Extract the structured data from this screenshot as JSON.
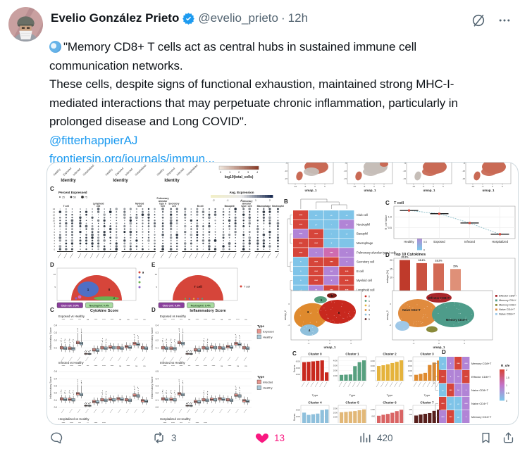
{
  "header": {
    "name": "Evelio González Prieto",
    "handle": "@evelio_prieto",
    "separator": "·",
    "time": "12h"
  },
  "tweet": {
    "p1": "\"Memory CD8+ T cells act as central hubs in sustained immune cell communication networks.",
    "p2": "These cells, despite signs of functional exhaustion, maintained strong MHC-I-mediated interactions that may perpetuate chronic inflammation, particularly in prolonged disease and Long COVID\".",
    "mention": "@fitterhappierAJ",
    "link": "frontiersin.org/journals/immun..."
  },
  "actions": {
    "reply_count": "",
    "retweet_count": "3",
    "like_count": "13",
    "views_count": "420"
  },
  "colors": {
    "accent": "#1d9bf0",
    "like": "#f91880",
    "text": "#0f1419",
    "secondary": "#536471"
  },
  "figure": {
    "palette": {
      "R": "#d6453a",
      "P": "#b184d6",
      "M": "#cf6bb0",
      "B": "#7fc4e8"
    },
    "identity": {
      "label": "Identity",
      "ticks": [
        "Healthy",
        "Exposed",
        "Infected",
        "Hospitalized"
      ]
    },
    "total_cells_legend": {
      "title": "log10(total_cells)",
      "ticks": [
        "0",
        "1",
        "2",
        "3",
        "4"
      ]
    },
    "mini_umaps": {
      "xlabel": "umap_1",
      "xticks": [
        "-10",
        "-5",
        "0",
        "5"
      ],
      "yticks": [
        "-5",
        "-10",
        "-15"
      ]
    },
    "dotplot": {
      "panel": "C",
      "pct_legend": {
        "title": "Percent Expressed",
        "sizes": [
          "25",
          "50",
          "75"
        ]
      },
      "expr_legend": {
        "title": "Avg. Expression",
        "ticks": [
          "-2",
          "-1",
          "0",
          "1",
          "2"
        ]
      },
      "rows": [
        "14",
        "13",
        "12",
        "11",
        "10",
        "9",
        "8",
        "7",
        "6",
        "5",
        "4",
        "3",
        "2",
        "1",
        "0"
      ],
      "groups": [
        {
          "name": "T cell",
          "n": 3
        },
        {
          "name": "Lymphoid cell",
          "n": 7
        },
        {
          "name": "Myeloid cell",
          "n": 6
        },
        {
          "name": "Pulmonary alveolar type II cell",
          "n": 1
        },
        {
          "name": "Secretory cell",
          "n": 2
        },
        {
          "name": "B cell",
          "n": 6
        },
        {
          "name": "Basophil",
          "n": 3
        },
        {
          "name": "Pulmonary alveolar type I cell",
          "n": 2
        },
        {
          "name": "Macrophage",
          "n": 3
        },
        {
          "name": "Neutrophil",
          "n": 1
        }
      ]
    },
    "heatmap_b": {
      "panel": "B",
      "legend": {
        "title": "R_o/e",
        "ticks": [
          "2",
          "1.5",
          "1",
          "0.5",
          "0"
        ]
      },
      "rows": [
        {
          "label": "Club cell",
          "cells": [
            [
              "R",
              "***"
            ],
            [
              "B",
              "+/-"
            ],
            [
              "B",
              "+/-"
            ],
            [
              "B",
              "+/-"
            ]
          ]
        },
        {
          "label": "Neutrophil",
          "cells": [
            [
              "R",
              "***"
            ],
            [
              "B",
              "+/-"
            ],
            [
              "B",
              "-"
            ],
            [
              "P",
              "+/-"
            ]
          ]
        },
        {
          "label": "Basophil",
          "cells": [
            [
              "P",
              "***"
            ],
            [
              "R",
              "***"
            ],
            [
              "B",
              "-"
            ],
            [
              "B",
              "+/-"
            ]
          ]
        },
        {
          "label": "Macrophage",
          "cells": [
            [
              "R",
              "***"
            ],
            [
              "R",
              "***"
            ],
            [
              "B",
              "*"
            ],
            [
              "B",
              ""
            ]
          ]
        },
        {
          "label": "Pulmonary alveolar type I cell",
          "cells": [
            [
              "R",
              "***"
            ],
            [
              "P",
              "*"
            ],
            [
              "M",
              "***"
            ],
            [
              "P",
              "*"
            ]
          ]
        },
        {
          "label": "Secretory cell",
          "cells": [
            [
              "B",
              "*"
            ],
            [
              "R",
              "***"
            ],
            [
              "R",
              "***"
            ],
            [
              "P",
              "*"
            ]
          ]
        },
        {
          "label": "B cell",
          "cells": [
            [
              "B",
              "*"
            ],
            [
              "R",
              "***"
            ],
            [
              "P",
              "**"
            ],
            [
              "R",
              "***"
            ]
          ]
        },
        {
          "label": "Myeloid cell",
          "cells": [
            [
              "B",
              "*"
            ],
            [
              "R",
              "***"
            ],
            [
              "P",
              "*"
            ],
            [
              "R",
              "***"
            ]
          ]
        },
        {
          "label": "Lymphoid cell",
          "cells": [
            [
              "B",
              "+/-"
            ],
            [
              "P",
              "**"
            ],
            [
              "R",
              "***"
            ],
            [
              "R",
              "***"
            ]
          ]
        }
      ]
    },
    "tcell": {
      "panel": "C",
      "title": "T cell",
      "ylabel": "R_o/e Value",
      "yticks": [
        "1.0",
        "0.5"
      ],
      "categories": [
        "Healthy",
        "Exposed",
        "Infected",
        "Hospitalized"
      ],
      "values": [
        1.3,
        1.15,
        0.72,
        0.2
      ]
    },
    "cytokines": {
      "panel": "D",
      "title": "Top 10 Cytokines",
      "ylabel": "entage (%)",
      "yticks": [
        "20",
        "15",
        "10"
      ],
      "values": [
        20.2,
        18.4,
        18.2,
        15
      ],
      "labels": [
        "20.2%",
        "18.4%",
        "18.2%",
        "15%"
      ],
      "bar_colors": [
        "#bf3a2b",
        "#ca5240",
        "#d26a55",
        "#df9078"
      ]
    },
    "semicircle_d": {
      "panel": "D",
      "yticks": [
        "10",
        "5"
      ],
      "legend": [
        [
          "0",
          "#d6453a"
        ],
        [
          "1",
          "#4f6fc4"
        ],
        [
          "2",
          "#6ab150"
        ],
        [
          "3",
          "#8f5fc4"
        ]
      ],
      "badges": [
        {
          "text": "Club cell: 0.9%",
          "bg": "#8b3f9e",
          "fg": "#ffffff"
        },
        {
          "text": "Neutrophil: 0.4%",
          "bg": "#a8dba0",
          "fg": "#1c3f1c"
        }
      ]
    },
    "semicircle_e": {
      "panel": "E",
      "yticks": [
        "10",
        "5"
      ],
      "label": "T cell",
      "legend": [
        [
          "T cell",
          "#d6453a"
        ]
      ],
      "badges": [
        {
          "text": "Club cell: 0.9%",
          "bg": "#8b3f9e",
          "fg": "#ffffff"
        },
        {
          "text": "Neutrophil: 0.4%",
          "bg": "#a8dba0",
          "fg": "#1c3f1c"
        }
      ]
    },
    "big_umaps": {
      "xlabel": "umap_1",
      "ylabel": "umap_2",
      "xticks": [
        "-4",
        "0",
        "4"
      ],
      "yticks": [
        "0",
        "-4"
      ],
      "left_numbers": [
        "0",
        "1",
        "3",
        "4",
        "5"
      ],
      "mini_legend": [
        "0",
        "1",
        "2",
        "3",
        "4",
        "5"
      ],
      "right_inplot": [
        "Effector CD8+T",
        "Naive CD4+T",
        "Memory CD4+T"
      ],
      "right_legend": [
        {
          "label": "Effector CD8+T",
          "color": "#a8262a"
        },
        {
          "label": "Memory CD4+T",
          "color": "#4e9c8a"
        },
        {
          "label": "Memory CD8+T",
          "color": "#8a8a3a"
        },
        {
          "label": "Naive CD4+T",
          "color": "#e08b3e"
        },
        {
          "label": "Naive CD8+T",
          "color": "#9fc8e8"
        }
      ]
    },
    "box": {
      "panel_c": "C",
      "panel_d": "D",
      "title_c": "Cytokine Score",
      "title_d": "Inflammatory Score",
      "ylabel": "Inflammatory Score",
      "rows": [
        {
          "subtitle": "Exposed vs Healthy",
          "ylim": 0.45,
          "yticks": [
            "0.4",
            "0.3",
            "0.2",
            "0.1"
          ],
          "sig": [
            "****",
            "****",
            "***",
            "ns",
            "****",
            "****",
            "****",
            "ns",
            "ns",
            "****",
            "ns"
          ],
          "medians": [
            0.1,
            0.093,
            0.168,
            0.02,
            0.072,
            0.1,
            0.108,
            0.1,
            0.115,
            0.155,
            0.1
          ],
          "legend": {
            "title": "Type",
            "entries": [
              {
                "label": "Exposed",
                "color": "#e8948c"
              },
              {
                "label": "Healthy",
                "color": "#a9c8d8"
              }
            ]
          }
        },
        {
          "subtitle": "Infected vs Healthy",
          "ylim": 0.55,
          "yticks": [
            "0.5",
            "0.4",
            "0.3",
            "0.2",
            "0.1",
            "0.0"
          ],
          "sig": [
            "****",
            "****",
            "****",
            "***",
            "****",
            "****",
            "****",
            "ns",
            "****",
            "ns",
            "ns"
          ],
          "medians": [
            0.118,
            0.112,
            0.19,
            0.024,
            0.08,
            0.105,
            0.112,
            0.12,
            0.105,
            0.17,
            0.092
          ],
          "legend": {
            "title": "Type",
            "entries": [
              {
                "label": "Infected",
                "color": "#e8948c"
              },
              {
                "label": "Healthy",
                "color": "#a9c8d8"
              }
            ]
          }
        },
        {
          "subtitle": "Hospitalized vs Healthy",
          "sig": [
            "****",
            "****",
            "***",
            "ns",
            "****",
            "****"
          ]
        }
      ]
    },
    "clusters": {
      "panel": "C",
      "xlabel": "Type",
      "ylabel": "Scores",
      "items": [
        {
          "name": "Cluster 0",
          "color": "#c8281e",
          "values": [
            5800,
            5900,
            6050,
            6200,
            6350,
            2600
          ],
          "yticks": [
            2000,
            4000,
            6000
          ],
          "max": 6600
        },
        {
          "name": "Cluster 1",
          "color": "#57a07f",
          "values": [
            1150,
            1200,
            1250,
            2900,
            3700,
            4050
          ],
          "yticks": [
            1000,
            2000,
            3000,
            4000
          ],
          "max": 4200
        },
        {
          "name": "Cluster 2",
          "color": "#e5b33c",
          "values": [
            3000,
            3150,
            3350,
            3600,
            3850,
            4150
          ],
          "yticks": [
            2000,
            3000,
            4000
          ],
          "max": 4300
        },
        {
          "name": "Cluster 3",
          "color": "#df8a2e",
          "values": [
            600,
            700,
            800,
            1600,
            1850,
            2050
          ],
          "yticks": [
            500,
            1000,
            1500,
            2000
          ],
          "max": 2150
        },
        {
          "name": "Cluster 4",
          "color": "#8fc0dc",
          "values": [
            2600,
            2250,
            2350,
            2450,
            3000,
            3100
          ],
          "yticks": [
            2000,
            3000
          ],
          "max": 3300
        },
        {
          "name": "Cluster 5",
          "color": "#e2b878",
          "values": [
            2050,
            2100,
            2150,
            2200,
            2300,
            2400
          ],
          "yticks": [
            1500,
            2000,
            2500
          ],
          "max": 2550
        },
        {
          "name": "Cluster 6",
          "color": "#d96464",
          "values": [
            820,
            880,
            930,
            1000,
            1100,
            1180
          ],
          "yticks": [
            800,
            1200
          ],
          "max": 1280
        },
        {
          "name": "Cluster 7",
          "color": "#571f1c",
          "values": [
            280,
            300,
            315,
            330,
            375,
            400
          ],
          "yticks": [
            300,
            400
          ],
          "max": 430
        }
      ]
    },
    "heatmap_d": {
      "panel": "D",
      "legend": {
        "title": "R_o/e",
        "ticks": [
          "2",
          "1.5",
          "1",
          "0.5",
          "0"
        ]
      },
      "rows": [
        {
          "label": "Memory CD8+T",
          "cells": [
            [
              "B",
              "+/-"
            ],
            [
              "P",
              "*"
            ],
            [
              "R",
              "***"
            ],
            [
              "P",
              "***"
            ]
          ]
        },
        {
          "label": "Effector CD8+T",
          "cells": [
            [
              "R",
              "***"
            ],
            [
              "P",
              "*"
            ],
            [
              "P",
              "**"
            ],
            [
              "R",
              "***"
            ]
          ]
        },
        {
          "label": "Naive CD8+T",
          "cells": [
            [
              "B",
              "+/-"
            ],
            [
              "R",
              "***"
            ],
            [
              "P",
              "**"
            ],
            [
              "P",
              "*"
            ]
          ]
        },
        {
          "label": "Naive CD4+T",
          "cells": [
            [
              "R",
              "***"
            ],
            [
              "B",
              "+/-"
            ],
            [
              "B",
              "+/-"
            ],
            [
              "P",
              "***"
            ]
          ]
        },
        {
          "label": "Memory CD4+T",
          "cells": [
            [
              "P",
              "***"
            ],
            [
              "R",
              "***"
            ],
            [
              "B",
              "+/-"
            ],
            [
              "P",
              "*"
            ]
          ]
        }
      ]
    }
  }
}
